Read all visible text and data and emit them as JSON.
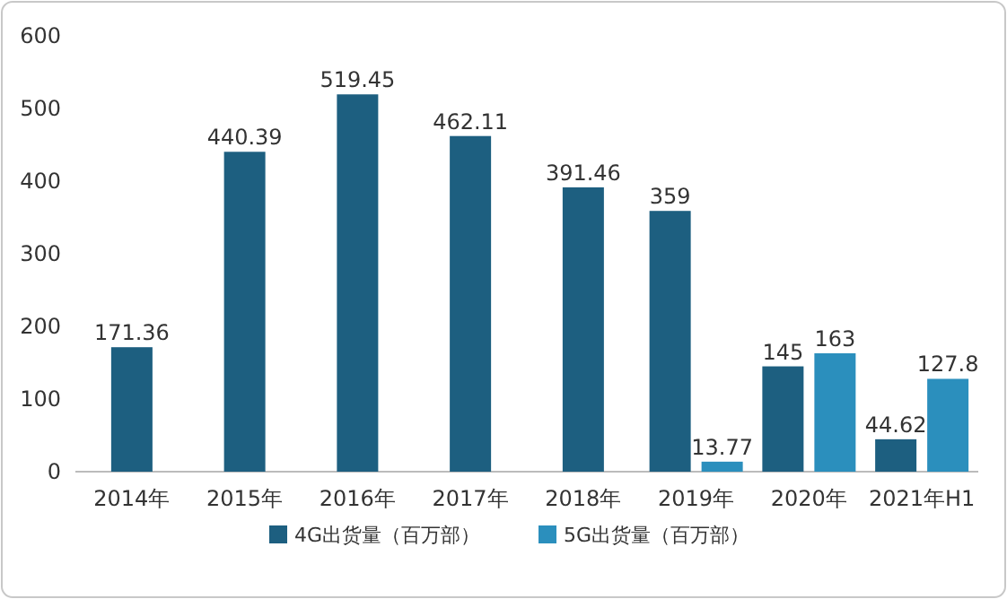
{
  "chart_data": {
    "type": "bar",
    "categories": [
      "2014年",
      "2015年",
      "2016年",
      "2017年",
      "2018年",
      "2019年",
      "2020年",
      "2021年H1"
    ],
    "series": [
      {
        "name": "4G出货量（百万部）",
        "color": "#1d5f80",
        "values": [
          171.36,
          440.39,
          519.45,
          462.11,
          391.46,
          359,
          145,
          44.62
        ]
      },
      {
        "name": "5G出货量（百万部）",
        "color": "#2b8fbd",
        "values": [
          null,
          null,
          null,
          null,
          null,
          13.77,
          163,
          127.8
        ]
      }
    ],
    "ylim": [
      0,
      600
    ],
    "yticks": [
      0,
      100,
      200,
      300,
      400,
      500,
      600
    ],
    "data_labels": true,
    "legend": "bottom"
  }
}
